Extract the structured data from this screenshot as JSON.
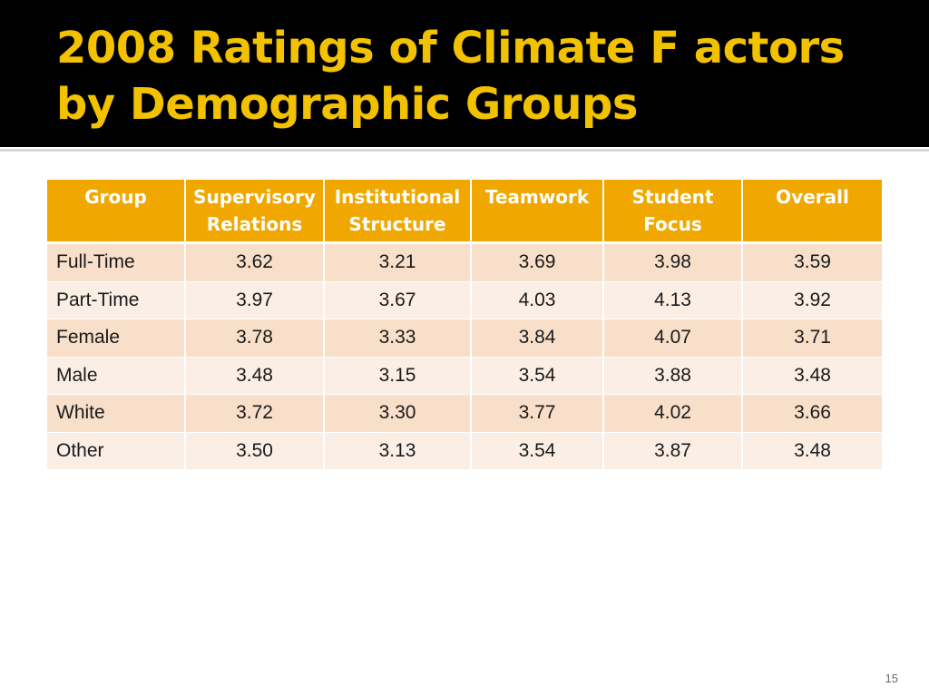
{
  "slide": {
    "title": "2008  Ratings of Climate F actors by Demographic Groups",
    "page_number": "15"
  },
  "table": {
    "headers": [
      "Group",
      "Supervisory Relations",
      "Institutional Structure",
      "Teamwork",
      "Student Focus",
      "Overall"
    ],
    "rows": [
      [
        "Full-Time",
        "3.62",
        "3.21",
        "3.69",
        "3.98",
        "3.59"
      ],
      [
        "Part-Time",
        "3.97",
        "3.67",
        "4.03",
        "4.13",
        "3.92"
      ],
      [
        "Female",
        "3.78",
        "3.33",
        "3.84",
        "4.07",
        "3.71"
      ],
      [
        "Male",
        "3.48",
        "3.15",
        "3.54",
        "3.88",
        "3.48"
      ],
      [
        "White",
        "3.72",
        "3.30",
        "3.77",
        "4.02",
        "3.66"
      ],
      [
        "Other",
        "3.50",
        "3.13",
        "3.54",
        "3.87",
        "3.48"
      ]
    ]
  },
  "colors": {
    "title_band": "#000000",
    "title_text": "#f2c200",
    "header_bg": "#f0a800",
    "row_odd": "#f8dfc9",
    "row_even": "#fbefe5"
  }
}
